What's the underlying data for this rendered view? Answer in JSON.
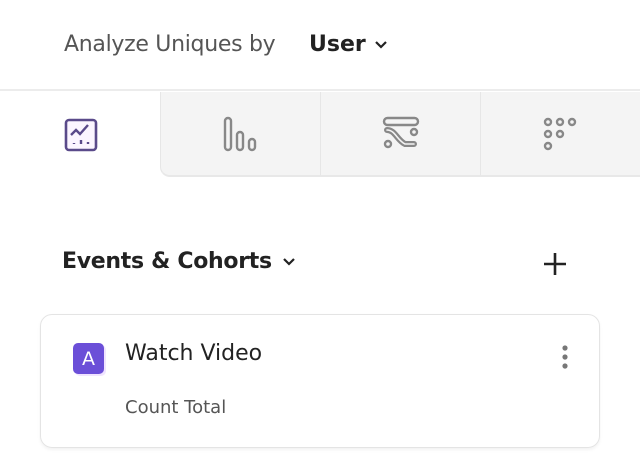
{
  "header": {
    "label": "Analyze Uniques by",
    "selected": "User"
  },
  "tabs": [
    {
      "icon": "line-chart-icon",
      "active": true
    },
    {
      "icon": "bar-chart-icon",
      "active": false
    },
    {
      "icon": "flows-icon",
      "active": false
    },
    {
      "icon": "retention-grid-icon",
      "active": false
    }
  ],
  "section": {
    "title": "Events & Cohorts"
  },
  "events": [
    {
      "badge": "A",
      "name": "Watch Video",
      "measure": "Count Total"
    }
  ],
  "colors": {
    "accent": "#6b4fd8",
    "tab_bg": "#f4f4f4"
  }
}
